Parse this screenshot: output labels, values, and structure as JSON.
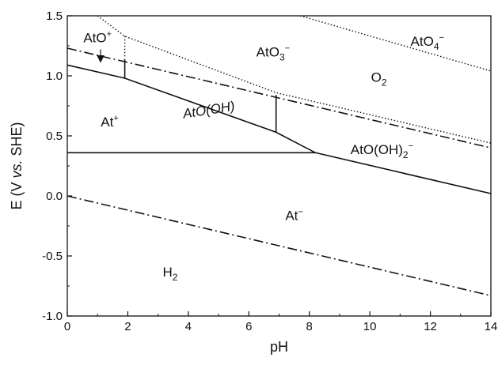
{
  "chart_data": {
    "type": "line",
    "xlabel": "pH",
    "ylabel": {
      "prefix": "E (V ",
      "italic": "vs.",
      "suffix": " SHE)"
    },
    "xlim": [
      0,
      14
    ],
    "ylim": [
      -1.0,
      1.5
    ],
    "xticks": [
      "0",
      "2",
      "4",
      "6",
      "8",
      "10",
      "12",
      "14"
    ],
    "yticks": [
      "-1.0",
      "-0.5",
      "0.0",
      "0.5",
      "1.0",
      "1.5"
    ],
    "grid": false,
    "series": [
      {
        "style": "solid",
        "color": "#111111",
        "points": [
          [
            0,
            1.09
          ],
          [
            1.9,
            0.98
          ],
          [
            6.9,
            0.53
          ],
          [
            8.2,
            0.36
          ],
          [
            14,
            0.02
          ]
        ]
      },
      {
        "style": "solid",
        "color": "#111111",
        "points": [
          [
            0,
            0.36
          ],
          [
            8.2,
            0.36
          ]
        ]
      },
      {
        "style": "solid",
        "color": "#111111",
        "points": [
          [
            1.9,
            0.98
          ],
          [
            1.9,
            1.14
          ]
        ]
      },
      {
        "style": "solid",
        "color": "#111111",
        "points": [
          [
            6.9,
            0.53
          ],
          [
            6.9,
            0.84
          ]
        ]
      },
      {
        "style": "dashdot",
        "color": "#111111",
        "points": [
          [
            0,
            1.23
          ],
          [
            14,
            0.4
          ]
        ]
      },
      {
        "style": "dashdot",
        "color": "#111111",
        "points": [
          [
            0,
            0.0
          ],
          [
            14,
            -0.83
          ]
        ]
      },
      {
        "style": "dotted",
        "color": "#111111",
        "points": [
          [
            1.0,
            1.5
          ],
          [
            1.9,
            1.33
          ],
          [
            6.9,
            0.86
          ],
          [
            14,
            0.44
          ]
        ]
      },
      {
        "style": "dotted",
        "color": "#111111",
        "points": [
          [
            1.9,
            1.33
          ],
          [
            1.9,
            1.15
          ]
        ]
      },
      {
        "style": "dotted",
        "color": "#111111",
        "points": [
          [
            7.7,
            1.5
          ],
          [
            14,
            1.04
          ]
        ]
      }
    ],
    "annotations": [
      {
        "name": "region-ato-plus",
        "base": "AtO",
        "sup": "+",
        "italic": false,
        "at": [
          1.0,
          1.28
        ]
      },
      {
        "name": "region-ato3",
        "base": "AtO",
        "sub": "3",
        "sup": "−",
        "italic": false,
        "at": [
          6.8,
          1.16
        ]
      },
      {
        "name": "region-ato4",
        "base": "AtO",
        "sub": "4",
        "sup": "−",
        "italic": false,
        "at": [
          11.9,
          1.25
        ]
      },
      {
        "name": "region-o2",
        "base": "O",
        "sub": "2",
        "italic": false,
        "at": [
          10.3,
          0.95
        ]
      },
      {
        "name": "region-atooh",
        "base": "AtO(OH)",
        "italic": true,
        "rotate": -9,
        "at": [
          4.7,
          0.68
        ]
      },
      {
        "name": "region-at-plus",
        "base": "At",
        "sup": "+",
        "italic": false,
        "at": [
          1.4,
          0.58
        ]
      },
      {
        "name": "region-atooh2",
        "base": "AtO(OH)",
        "sub": "2",
        "sup": "−",
        "italic": false,
        "at": [
          10.4,
          0.35
        ]
      },
      {
        "name": "region-at-minus",
        "base": "At",
        "sup": "−",
        "italic": false,
        "at": [
          7.5,
          -0.2
        ]
      },
      {
        "name": "region-h2",
        "base": "H",
        "sub": "2",
        "italic": false,
        "at": [
          3.4,
          -0.67
        ]
      }
    ],
    "arrows": [
      {
        "from": [
          1.1,
          1.22
        ],
        "to": [
          1.1,
          1.1
        ]
      }
    ]
  }
}
